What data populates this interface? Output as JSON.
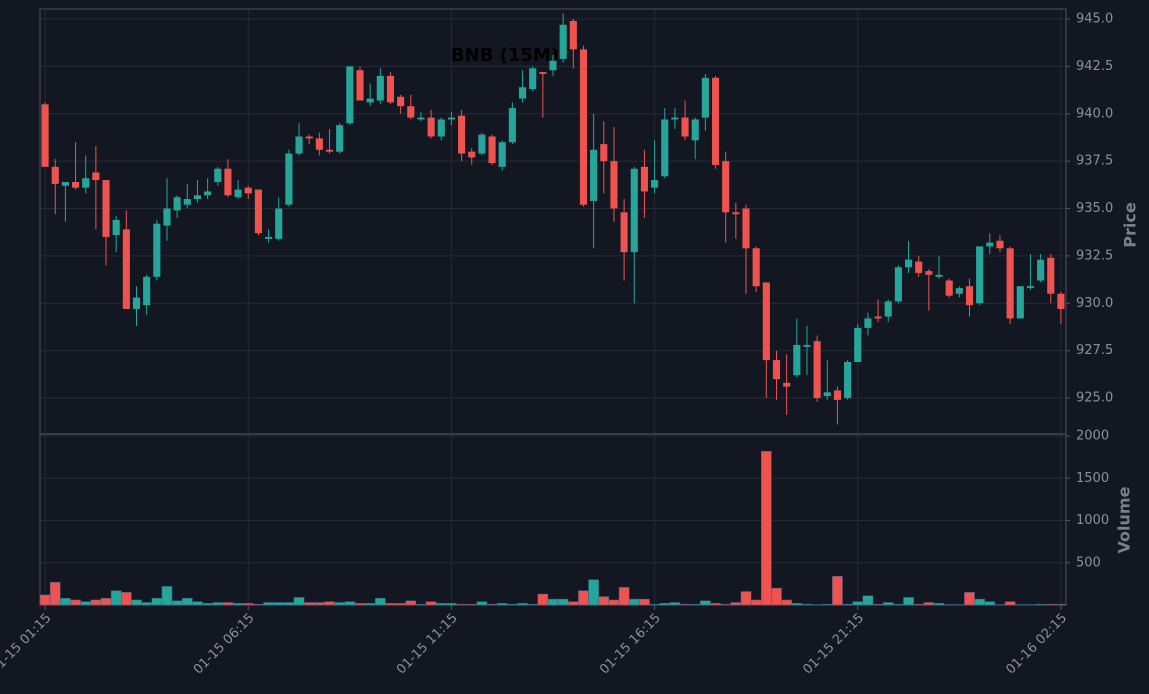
{
  "chart_data": [
    {
      "type": "candlestick",
      "title": "BNB (15M)",
      "ylabel": "Price",
      "categories": [
        "01-15 01:15",
        null,
        null,
        null,
        null,
        null,
        null,
        null,
        null,
        null,
        null,
        null,
        null,
        null,
        null,
        null,
        null,
        null,
        null,
        null,
        "01-15 06:15",
        null,
        null,
        null,
        null,
        null,
        null,
        null,
        null,
        null,
        null,
        null,
        null,
        null,
        null,
        null,
        null,
        null,
        null,
        null,
        "01-15 11:15",
        null,
        null,
        null,
        null,
        null,
        null,
        null,
        null,
        null,
        null,
        null,
        null,
        null,
        null,
        null,
        null,
        null,
        null,
        null,
        "01-15 16:15",
        null,
        null,
        null,
        null,
        null,
        null,
        null,
        null,
        null,
        null,
        null,
        null,
        null,
        null,
        null,
        null,
        null,
        null,
        null,
        "01-15 21:15",
        null,
        null,
        null,
        null,
        null,
        null,
        null,
        null,
        null,
        null,
        null,
        null,
        null,
        null,
        null,
        null,
        null,
        null,
        null,
        "01-16 02:15"
      ],
      "open": [
        940.5,
        937.2,
        936.2,
        936.4,
        936.1,
        936.9,
        936.5,
        933.6,
        933.9,
        929.7,
        929.9,
        931.4,
        934.1,
        934.9,
        935.2,
        935.5,
        935.7,
        936.4,
        937.1,
        935.6,
        936.1,
        936.0,
        933.4,
        933.4,
        935.2,
        937.9,
        938.8,
        938.7,
        938.1,
        938.0,
        939.5,
        942.3,
        940.6,
        940.7,
        942.0,
        940.9,
        940.4,
        939.7,
        939.8,
        938.8,
        939.7,
        939.9,
        938.0,
        937.9,
        938.8,
        937.2,
        938.5,
        940.8,
        941.3,
        942.2,
        942.3,
        942.9,
        944.9,
        943.4,
        935.4,
        938.4,
        937.5,
        934.8,
        932.7,
        937.2,
        936.1,
        936.7,
        939.7,
        939.8,
        938.6,
        939.8,
        941.9,
        937.5,
        934.8,
        935.0,
        932.9,
        931.1,
        927.0,
        925.8,
        926.2,
        927.7,
        928.0,
        925.1,
        925.4,
        925.0,
        926.9,
        928.7,
        929.3,
        929.3,
        930.1,
        931.9,
        932.2,
        931.7,
        931.4,
        931.2,
        930.5,
        930.9,
        930.0,
        933.0,
        933.3,
        932.9,
        929.2,
        930.8,
        931.2,
        932.4,
        930.5
      ],
      "high": [
        940.6,
        937.6,
        936.4,
        938.5,
        937.8,
        938.3,
        936.5,
        934.6,
        934.9,
        930.9,
        931.5,
        934.4,
        936.6,
        935.7,
        936.3,
        936.5,
        936.6,
        937.2,
        937.6,
        936.5,
        936.2,
        936.0,
        933.9,
        935.6,
        938.1,
        939.5,
        938.9,
        939.0,
        939.2,
        939.5,
        942.5,
        942.5,
        941.6,
        942.4,
        942.2,
        941.0,
        941.0,
        940.1,
        940.2,
        939.8,
        940.1,
        940.2,
        938.2,
        939.0,
        938.9,
        938.6,
        940.6,
        942.3,
        942.5,
        942.2,
        943.1,
        945.3,
        945.0,
        943.6,
        940.0,
        939.6,
        939.3,
        935.5,
        937.2,
        938.1,
        938.6,
        940.3,
        940.3,
        940.7,
        939.8,
        942.1,
        942.0,
        938.0,
        935.3,
        935.2,
        933.0,
        931.1,
        927.5,
        927.3,
        929.2,
        928.8,
        928.3,
        927.0,
        925.6,
        927.0,
        928.9,
        929.5,
        930.2,
        930.2,
        932.0,
        933.3,
        932.5,
        931.8,
        932.5,
        931.3,
        930.9,
        931.3,
        933.0,
        933.7,
        933.6,
        933.0,
        930.9,
        932.6,
        932.6,
        932.6,
        930.6
      ],
      "low": [
        937.2,
        934.7,
        934.3,
        936.0,
        935.8,
        933.9,
        932.0,
        932.7,
        929.7,
        928.8,
        929.4,
        931.2,
        933.3,
        934.5,
        935.0,
        935.3,
        935.5,
        936.2,
        935.6,
        935.5,
        935.5,
        933.6,
        933.2,
        933.3,
        935.1,
        937.8,
        938.4,
        937.8,
        937.9,
        937.9,
        939.4,
        940.7,
        940.4,
        940.5,
        940.5,
        940.0,
        939.7,
        939.6,
        938.7,
        938.6,
        939.4,
        937.5,
        937.3,
        937.8,
        937.3,
        937.0,
        938.4,
        940.6,
        941.2,
        939.8,
        942.0,
        942.7,
        942.4,
        935.1,
        932.9,
        935.8,
        934.3,
        931.2,
        930.0,
        934.5,
        935.8,
        936.6,
        939.2,
        938.6,
        937.6,
        939.1,
        937.1,
        933.2,
        933.4,
        930.5,
        930.6,
        925.0,
        924.9,
        924.1,
        926.1,
        926.2,
        924.8,
        924.9,
        923.6,
        924.9,
        926.9,
        928.3,
        929.0,
        929.0,
        930.0,
        931.6,
        931.4,
        929.6,
        931.3,
        930.3,
        930.3,
        929.3,
        929.9,
        932.6,
        932.7,
        928.9,
        929.2,
        930.7,
        931.1,
        930.0,
        928.9
      ],
      "close": [
        937.2,
        936.3,
        936.4,
        936.1,
        936.6,
        936.5,
        933.5,
        934.4,
        929.7,
        930.3,
        931.4,
        934.2,
        935.0,
        935.6,
        935.5,
        935.7,
        935.9,
        937.1,
        935.7,
        936.0,
        935.8,
        933.7,
        933.5,
        935.0,
        937.9,
        938.8,
        938.7,
        938.1,
        938.0,
        939.4,
        942.5,
        940.7,
        940.8,
        942.0,
        940.6,
        940.4,
        939.8,
        939.8,
        938.8,
        939.7,
        939.8,
        937.9,
        937.7,
        938.9,
        937.4,
        938.5,
        940.3,
        941.4,
        942.4,
        942.1,
        942.8,
        944.7,
        943.4,
        935.2,
        938.1,
        937.5,
        935.0,
        932.7,
        937.1,
        935.9,
        936.5,
        939.7,
        939.8,
        938.8,
        939.7,
        941.9,
        937.3,
        934.8,
        934.7,
        932.9,
        930.9,
        927.0,
        926.0,
        925.6,
        927.8,
        927.8,
        925.0,
        925.3,
        924.9,
        926.9,
        928.7,
        929.2,
        929.2,
        930.1,
        931.9,
        932.3,
        931.6,
        931.5,
        931.5,
        930.4,
        930.8,
        929.9,
        933.0,
        933.2,
        932.9,
        929.2,
        930.9,
        930.9,
        932.3,
        930.5,
        929.7
      ],
      "up_color": "#26a69a",
      "down_color": "#ef5350",
      "ylim": [
        923.1,
        945.53
      ],
      "yticks": [
        {
          "value": 925,
          "label": "925.0"
        },
        927.5,
        {
          "value": 930,
          "label": "930.0"
        },
        932.5,
        {
          "value": 935,
          "label": "935.0"
        },
        937.5,
        {
          "value": 940,
          "label": "940.0"
        },
        942.5,
        {
          "value": 945,
          "label": "945.0"
        }
      ],
      "grid": true
    },
    {
      "type": "bar",
      "ylabel": "Volume",
      "values": [
        120,
        270,
        80,
        60,
        40,
        60,
        80,
        170,
        150,
        60,
        30,
        80,
        220,
        50,
        80,
        40,
        20,
        30,
        30,
        20,
        20,
        10,
        30,
        30,
        30,
        90,
        30,
        30,
        40,
        30,
        40,
        20,
        20,
        80,
        20,
        20,
        50,
        10,
        40,
        20,
        20,
        10,
        10,
        40,
        10,
        20,
        10,
        20,
        10,
        130,
        70,
        70,
        40,
        170,
        300,
        100,
        60,
        210,
        70,
        70,
        10,
        20,
        30,
        10,
        10,
        50,
        20,
        10,
        30,
        160,
        60,
        1820,
        200,
        60,
        20,
        10,
        5,
        10,
        340,
        10,
        40,
        110,
        10,
        30,
        10,
        90,
        10,
        30,
        20,
        5,
        5,
        150,
        70,
        40,
        5,
        40,
        5,
        5,
        10,
        10,
        10
      ],
      "ylim": [
        0,
        2024
      ],
      "yticks": [
        500,
        1000,
        1500,
        2000
      ],
      "grid": true
    }
  ]
}
